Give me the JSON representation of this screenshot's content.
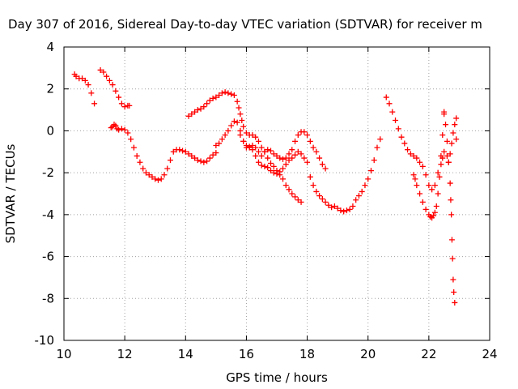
{
  "chart_data": {
    "type": "scatter",
    "title": "Day 307 of 2016, Sidereal Day-to-day VTEC variation (SDTVAR) for receiver m",
    "xlabel": "GPS time / hours",
    "ylabel": "SDTVAR / TECUs",
    "xlim": [
      10,
      24
    ],
    "ylim": [
      -10,
      4
    ],
    "xticks": [
      10,
      12,
      14,
      16,
      18,
      20,
      22,
      24
    ],
    "yticks": [
      -10,
      -8,
      -6,
      -4,
      -2,
      0,
      2,
      4
    ],
    "grid": true,
    "marker": "+",
    "color": "#ff0000",
    "series": [
      {
        "x": [
          10.35,
          10.4,
          10.5,
          10.6,
          10.7,
          10.8,
          10.9,
          11.0
        ],
        "y": [
          2.7,
          2.6,
          2.5,
          2.5,
          2.4,
          2.2,
          1.8,
          1.3
        ]
      },
      {
        "x": [
          11.2,
          11.3,
          11.4,
          11.5,
          11.6,
          11.7,
          11.8,
          11.9,
          12.0,
          12.1,
          12.15
        ],
        "y": [
          2.9,
          2.8,
          2.6,
          2.4,
          2.2,
          1.9,
          1.6,
          1.3,
          1.15,
          1.2,
          1.2
        ]
      },
      {
        "x": [
          11.55,
          11.6,
          11.65,
          11.7,
          11.75,
          11.8,
          11.9,
          12.0,
          12.1,
          12.2,
          12.3,
          12.4,
          12.5,
          12.6,
          12.7,
          12.8,
          12.9,
          13.0,
          13.1,
          13.2,
          13.3,
          13.4,
          13.5,
          13.6,
          13.7,
          13.8,
          13.9,
          14.0,
          14.1,
          14.2,
          14.3,
          14.4,
          14.5,
          14.6,
          14.7,
          14.8,
          14.9,
          15.0
        ],
        "y": [
          0.15,
          0.2,
          0.3,
          0.25,
          0.1,
          0.05,
          0.1,
          0.05,
          -0.1,
          -0.4,
          -0.8,
          -1.2,
          -1.5,
          -1.8,
          -2.0,
          -2.1,
          -2.2,
          -2.3,
          -2.35,
          -2.3,
          -2.1,
          -1.8,
          -1.4,
          -1.0,
          -0.9,
          -0.9,
          -0.95,
          -1.0,
          -1.1,
          -1.2,
          -1.3,
          -1.4,
          -1.45,
          -1.5,
          -1.45,
          -1.3,
          -1.15,
          -1.05
        ]
      },
      {
        "x": [
          14.1,
          14.2,
          14.3,
          14.4,
          14.5,
          14.6,
          14.7,
          14.8,
          14.9,
          15.0,
          15.1,
          15.2,
          15.3,
          15.4,
          15.5,
          15.6,
          15.7,
          15.75,
          15.8,
          15.85,
          15.9,
          16.0,
          16.1,
          16.2,
          16.3,
          16.4,
          16.5,
          16.6,
          16.7,
          16.8,
          16.9,
          17.0,
          17.1,
          17.2,
          17.3,
          17.4,
          17.5,
          17.6,
          17.7,
          17.8
        ],
        "y": [
          0.7,
          0.8,
          0.9,
          1.0,
          1.05,
          1.15,
          1.3,
          1.45,
          1.55,
          1.6,
          1.7,
          1.8,
          1.85,
          1.8,
          1.75,
          1.7,
          1.4,
          1.1,
          0.8,
          0.5,
          0.2,
          -0.1,
          -0.2,
          -0.2,
          -0.3,
          -0.5,
          -0.8,
          -1.0,
          -1.3,
          -1.55,
          -1.7,
          -1.9,
          -2.1,
          -2.3,
          -2.6,
          -2.8,
          -3.0,
          -3.15,
          -3.3,
          -3.4
        ]
      },
      {
        "x": [
          15.0,
          15.1,
          15.2,
          15.3,
          15.4,
          15.5,
          15.6,
          15.7,
          15.8,
          15.9,
          16.0,
          16.1,
          16.2,
          16.3,
          16.4,
          16.5,
          16.6,
          16.7,
          16.8,
          16.9,
          17.0,
          17.1,
          17.2,
          17.3,
          17.4,
          17.5,
          17.6,
          17.7,
          17.8,
          17.9,
          18.0,
          18.1,
          18.2,
          18.3,
          18.4,
          18.5,
          18.6
        ],
        "y": [
          -0.7,
          -0.6,
          -0.4,
          -0.2,
          0.0,
          0.25,
          0.45,
          0.4,
          0.0,
          -0.5,
          -0.8,
          -0.75,
          -0.7,
          -0.8,
          -1.0,
          -1.2,
          -1.0,
          -0.9,
          -0.95,
          -1.1,
          -1.2,
          -1.3,
          -1.35,
          -1.3,
          -1.1,
          -0.9,
          -0.5,
          -0.2,
          -0.05,
          -0.05,
          -0.2,
          -0.5,
          -0.8,
          -1.0,
          -1.3,
          -1.6,
          -1.8
        ]
      },
      {
        "x": [
          15.8,
          15.9,
          16.0,
          16.1,
          16.2,
          16.3,
          16.4,
          16.5,
          16.6,
          16.7,
          16.8,
          16.9,
          17.0,
          17.1,
          17.2,
          17.3,
          17.4,
          17.5,
          17.6,
          17.7,
          17.8,
          17.9,
          18.0
        ],
        "y": [
          -0.2,
          -0.5,
          -0.7,
          -0.8,
          -0.9,
          -1.2,
          -1.5,
          -1.65,
          -1.7,
          -1.75,
          -1.9,
          -2.0,
          -2.05,
          -1.95,
          -1.8,
          -1.6,
          -1.4,
          -1.3,
          -1.15,
          -1.0,
          -1.1,
          -1.3,
          -1.5
        ]
      },
      {
        "x": [
          18.1,
          18.2,
          18.3,
          18.4,
          18.5,
          18.6,
          18.7,
          18.8,
          18.9,
          19.0,
          19.1,
          19.2,
          19.3,
          19.4,
          19.5,
          19.6,
          19.7,
          19.8,
          19.9,
          20.0,
          20.1,
          20.2,
          20.3,
          20.4
        ],
        "y": [
          -2.2,
          -2.6,
          -2.9,
          -3.1,
          -3.25,
          -3.4,
          -3.55,
          -3.65,
          -3.6,
          -3.7,
          -3.8,
          -3.85,
          -3.8,
          -3.75,
          -3.6,
          -3.3,
          -3.1,
          -2.9,
          -2.6,
          -2.3,
          -1.9,
          -1.4,
          -0.8,
          -0.4
        ]
      },
      {
        "x": [
          20.6,
          20.7,
          20.8,
          20.9,
          21.0,
          21.1,
          21.2,
          21.3,
          21.4,
          21.5,
          21.6,
          21.7,
          21.8,
          21.9,
          22.0,
          22.1,
          22.2,
          22.3,
          22.4,
          22.45,
          22.5,
          22.6,
          22.65,
          22.7,
          22.75,
          22.8,
          22.85,
          22.9
        ],
        "y": [
          1.6,
          1.3,
          0.9,
          0.5,
          0.1,
          -0.3,
          -0.6,
          -0.9,
          -1.1,
          -1.2,
          -1.3,
          -1.5,
          -1.7,
          -2.1,
          -2.6,
          -2.8,
          -2.6,
          -2.0,
          -1.6,
          -1.3,
          -1.0,
          -1.2,
          -1.5,
          -1.1,
          -0.6,
          -0.1,
          0.3,
          0.6
        ]
      },
      {
        "x": [
          21.5,
          21.55,
          21.6,
          21.7,
          21.8,
          21.9,
          22.0,
          22.05,
          22.1,
          22.15,
          22.2,
          22.25,
          22.3,
          22.35,
          22.4,
          22.45,
          22.5
        ],
        "y": [
          -2.1,
          -2.3,
          -2.6,
          -3.0,
          -3.4,
          -3.75,
          -4.0,
          -4.1,
          -4.15,
          -4.05,
          -3.9,
          -3.6,
          -3.0,
          -2.2,
          -1.2,
          -0.2,
          0.8
        ]
      },
      {
        "x": [
          22.5,
          22.55,
          22.6,
          22.65,
          22.7,
          22.72,
          22.74,
          22.76,
          22.78,
          22.8,
          22.82,
          22.85,
          22.9
        ],
        "y": [
          0.9,
          0.3,
          -0.5,
          -1.5,
          -2.5,
          -3.3,
          -4.0,
          -5.2,
          -6.1,
          -7.1,
          -7.7,
          -8.2,
          -0.4
        ]
      }
    ]
  }
}
